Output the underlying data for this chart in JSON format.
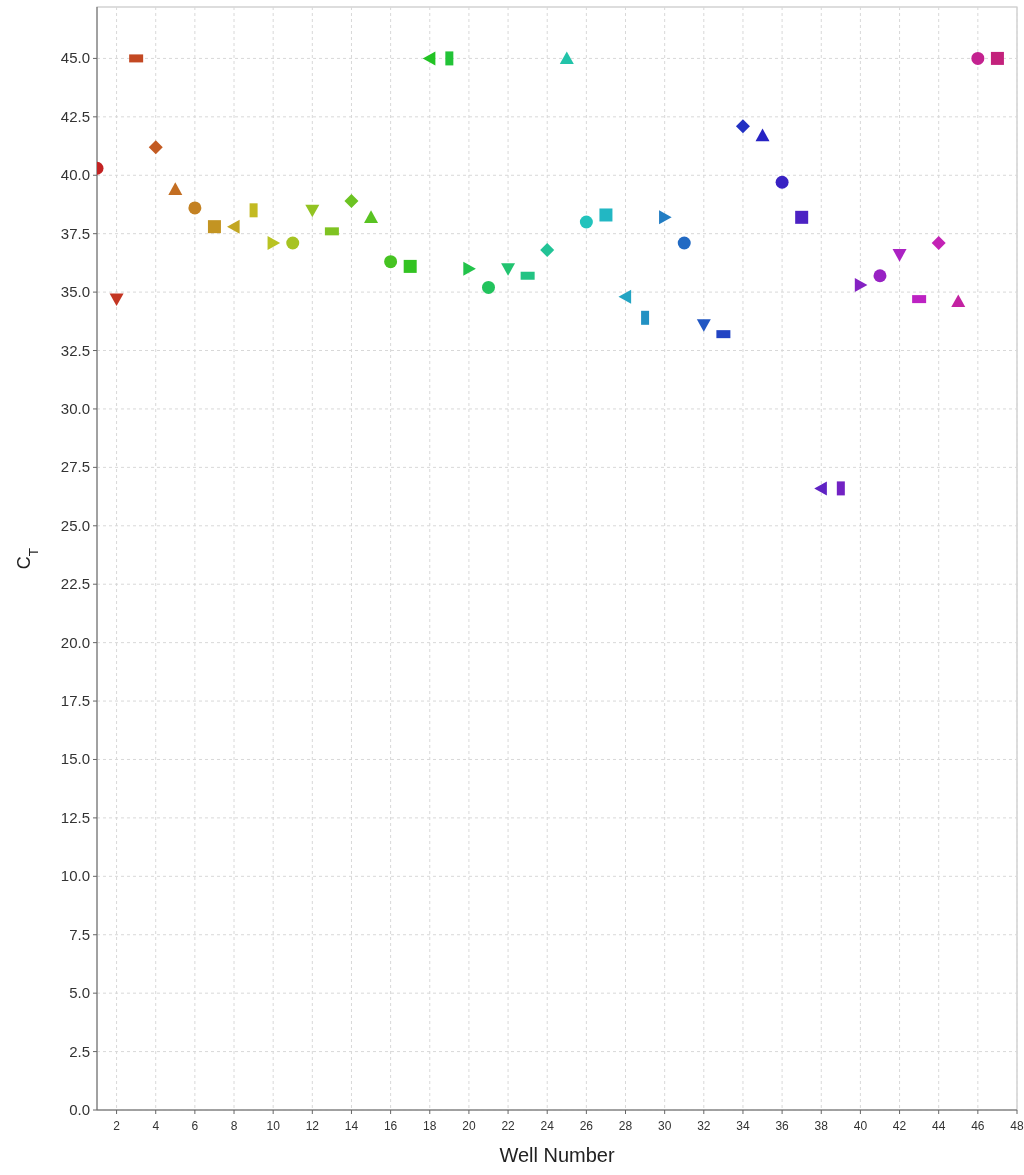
{
  "chart_data": {
    "type": "scatter",
    "xlabel": "Well Number",
    "ylabel": "C$_{T}$",
    "xlim": [
      1,
      48
    ],
    "xticks": [
      2,
      4,
      6,
      8,
      10,
      12,
      14,
      16,
      18,
      20,
      22,
      24,
      26,
      28,
      30,
      32,
      34,
      36,
      38,
      40,
      42,
      44,
      46,
      48
    ],
    "ylim": [
      0,
      47.2
    ],
    "yticks": [
      {
        "value": 0,
        "label": "0.0"
      },
      {
        "value": 2.5,
        "label": "2.5"
      },
      {
        "value": 5,
        "label": "5.0"
      },
      {
        "value": 7.5,
        "label": "7.5"
      },
      {
        "value": 10,
        "label": "10.0"
      },
      {
        "value": 12.5,
        "label": "12.5"
      },
      {
        "value": 15,
        "label": "15.0"
      },
      {
        "value": 17.5,
        "label": "17.5"
      },
      {
        "value": 20,
        "label": "20.0"
      },
      {
        "value": 22.5,
        "label": "22.5"
      },
      {
        "value": 25,
        "label": "25.0"
      },
      {
        "value": 27.5,
        "label": "27.5"
      },
      {
        "value": 30,
        "label": "30.0"
      },
      {
        "value": 32.5,
        "label": "32.5"
      },
      {
        "value": 35,
        "label": "35.0"
      },
      {
        "value": 37.5,
        "label": "37.5"
      },
      {
        "value": 40,
        "label": "40.0"
      },
      {
        "value": 42.5,
        "label": "42.5"
      },
      {
        "value": 45,
        "label": "45.0"
      }
    ],
    "grid": true,
    "series": [
      {
        "marker": "circle",
        "x": [
          6,
          16,
          26,
          36,
          46
        ],
        "values": [
          38.6,
          36.3,
          38.0,
          39.7,
          45.0
        ],
        "colors": [
          "#c38122",
          "#46c322",
          "#22c3bc",
          "#3922c3",
          "#c3228f"
        ]
      },
      {
        "marker": "square",
        "x": [
          7,
          17,
          27,
          37,
          47
        ],
        "values": [
          37.8,
          36.1,
          38.3,
          38.2,
          45.0
        ],
        "colors": [
          "#c39422",
          "#33c322",
          "#22b7c3",
          "#4c22c3",
          "#c3227c"
        ]
      },
      {
        "marker": "triangle-left",
        "x": [
          8,
          18,
          28,
          38
        ],
        "values": [
          37.8,
          45.0,
          34.8,
          26.6
        ],
        "colors": [
          "#c3a722",
          "#22c324",
          "#22a4c3",
          "#5f22c3"
        ]
      },
      {
        "marker": "rect-vertical",
        "x": [
          9,
          19,
          29,
          39
        ],
        "values": [
          38.5,
          45.0,
          33.9,
          26.6
        ],
        "colors": [
          "#c3ba22",
          "#22c337",
          "#2291c3",
          "#7222c3"
        ]
      },
      {
        "marker": "triangle-right",
        "x": [
          10,
          20,
          30,
          40
        ],
        "values": [
          37.1,
          36.0,
          38.2,
          35.3
        ],
        "colors": [
          "#b9c322",
          "#22c34a",
          "#227dc3",
          "#8522c3"
        ]
      },
      {
        "marker": "circle",
        "x": [
          1,
          11,
          21,
          31,
          41
        ],
        "values": [
          40.3,
          37.1,
          35.2,
          37.1,
          35.7
        ],
        "colors": [
          "#c32222",
          "#a6c322",
          "#22c35d",
          "#226ac3",
          "#9822c3"
        ]
      },
      {
        "marker": "triangle-down",
        "x": [
          2,
          12,
          22,
          32,
          42
        ],
        "values": [
          34.7,
          38.5,
          36.0,
          33.6,
          36.6
        ],
        "colors": [
          "#c33522",
          "#92c322",
          "#22c370",
          "#2257c3",
          "#ab22c3"
        ]
      },
      {
        "marker": "rect-horizontal",
        "x": [
          3,
          13,
          23,
          33,
          43
        ],
        "values": [
          45.0,
          37.6,
          35.7,
          33.2,
          34.7
        ],
        "colors": [
          "#c34822",
          "#7fc322",
          "#22c383",
          "#2244c3",
          "#bd22c3"
        ]
      },
      {
        "marker": "diamond",
        "x": [
          4,
          14,
          24,
          34,
          44
        ],
        "values": [
          41.2,
          38.9,
          36.8,
          42.1,
          37.1
        ],
        "colors": [
          "#c35b22",
          "#6cc322",
          "#22c396",
          "#2231c3",
          "#c322b5"
        ]
      },
      {
        "marker": "triangle",
        "x": [
          5,
          15,
          25,
          35,
          45
        ],
        "values": [
          39.4,
          38.2,
          45.0,
          41.7,
          34.6
        ],
        "colors": [
          "#c36e22",
          "#59c322",
          "#22c3a9",
          "#2622c3",
          "#c322a2"
        ]
      }
    ]
  }
}
